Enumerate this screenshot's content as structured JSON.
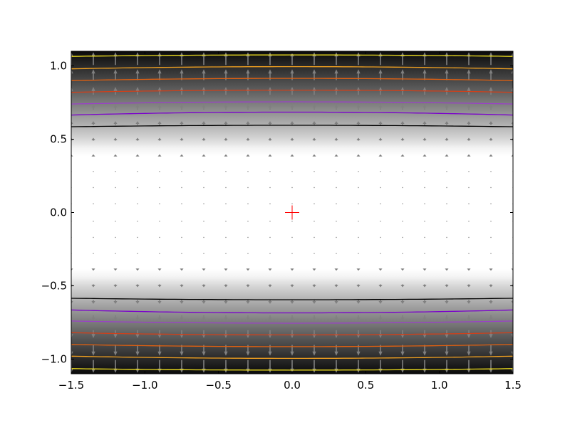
{
  "chart_data": {
    "type": "contour",
    "title": "",
    "xlabel": "",
    "ylabel": "",
    "xlim": [
      -1.5,
      1.5
    ],
    "ylim": [
      -1.1,
      1.1
    ],
    "x_ticks": [
      {
        "value": -1.5,
        "label": "−1.5"
      },
      {
        "value": -1.0,
        "label": "−1.0"
      },
      {
        "value": -0.5,
        "label": "−0.5"
      },
      {
        "value": 0.0,
        "label": "0.0"
      },
      {
        "value": 0.5,
        "label": "0.5"
      },
      {
        "value": 1.0,
        "label": "1.0"
      },
      {
        "value": 1.5,
        "label": "1.5"
      }
    ],
    "y_ticks": [
      {
        "value": 1.0,
        "label": "1.0"
      },
      {
        "value": 0.5,
        "label": "0.5"
      },
      {
        "value": 0.0,
        "label": "0.0"
      },
      {
        "value": -0.5,
        "label": "−0.5"
      },
      {
        "value": -1.0,
        "label": "−1.0"
      }
    ],
    "grid": false,
    "background": {
      "description": "grayscale field: white near y=0, darkening toward |y|=1.1",
      "colormap": "gray_r"
    },
    "contours": [
      {
        "color": "#000000",
        "y_center": 0.595,
        "y_edge": 0.585
      },
      {
        "color": "#7a00cc",
        "y_center": 0.685,
        "y_edge": 0.665
      },
      {
        "color": "#9a40c8",
        "y_center": 0.755,
        "y_edge": 0.74
      },
      {
        "color": "#d0401a",
        "y_center": 0.835,
        "y_edge": 0.82
      },
      {
        "color": "#e06010",
        "y_center": 0.915,
        "y_edge": 0.9
      },
      {
        "color": "#f0a020",
        "y_center": 0.995,
        "y_edge": 0.98
      },
      {
        "color": "#f0e020",
        "y_center": 1.075,
        "y_edge": 1.065
      }
    ],
    "quiver": {
      "color": "#808080",
      "x": [
        -1.5,
        -1.35,
        -1.2,
        -1.05,
        -0.9,
        -0.75,
        -0.6,
        -0.45,
        -0.3,
        -0.15,
        0.0,
        0.15,
        0.3,
        0.45,
        0.6,
        0.75,
        0.9,
        1.05,
        1.2,
        1.35,
        1.5
      ],
      "y": [
        1.05,
        0.94,
        0.83,
        0.72,
        0.61,
        0.5,
        0.39,
        0.28,
        0.17,
        0.06,
        -0.06,
        -0.17,
        -0.28,
        -0.39,
        -0.5,
        -0.61,
        -0.72,
        -0.83,
        -0.94,
        -1.05
      ],
      "direction": "away from y=0, magnitude growing with |y|"
    },
    "marker": {
      "x": 0.0,
      "y": 0.0,
      "symbol": "+",
      "color": "#ff0000"
    }
  }
}
